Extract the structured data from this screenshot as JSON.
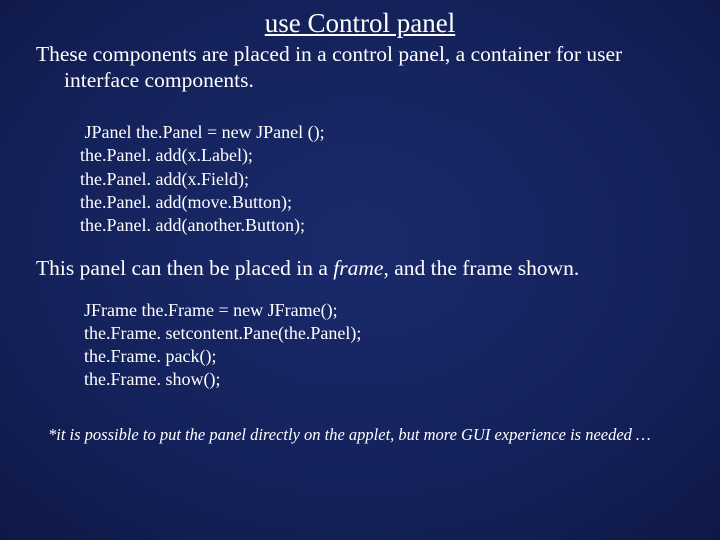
{
  "colors": {
    "text": "#ffffff",
    "bg_center": "#1a2a6b",
    "bg_mid": "#14215a",
    "bg_outer": "#0d1640",
    "bg_edge": "#060b28"
  },
  "typography": {
    "family": "Times New Roman",
    "title_fontsize": 27,
    "body_fontsize": 21.5,
    "code_fontsize": 18,
    "footnote_fontsize": 16.5
  },
  "title": "use Control panel",
  "para1": "These components are placed in a control panel, a container for user interface components.",
  "code1": {
    "l1": " JPanel the.Panel = new JPanel ();",
    "l2": "the.Panel. add(x.Label);",
    "l3": "the.Panel. add(x.Field);",
    "l4": "the.Panel. add(move.Button);",
    "l5": "the.Panel. add(another.Button);"
  },
  "para2_pre": "This panel can then be placed in a ",
  "para2_em": "frame",
  "para2_post": ", and the frame shown.",
  "code2": {
    "l1": "JFrame the.Frame = new JFrame();",
    "l2": "the.Frame. setcontent.Pane(the.Panel);",
    "l3": "the.Frame. pack();",
    "l4": "the.Frame. show();"
  },
  "footnote": "*it is possible to put the panel directly on the applet, but more GUI experience is needed …"
}
